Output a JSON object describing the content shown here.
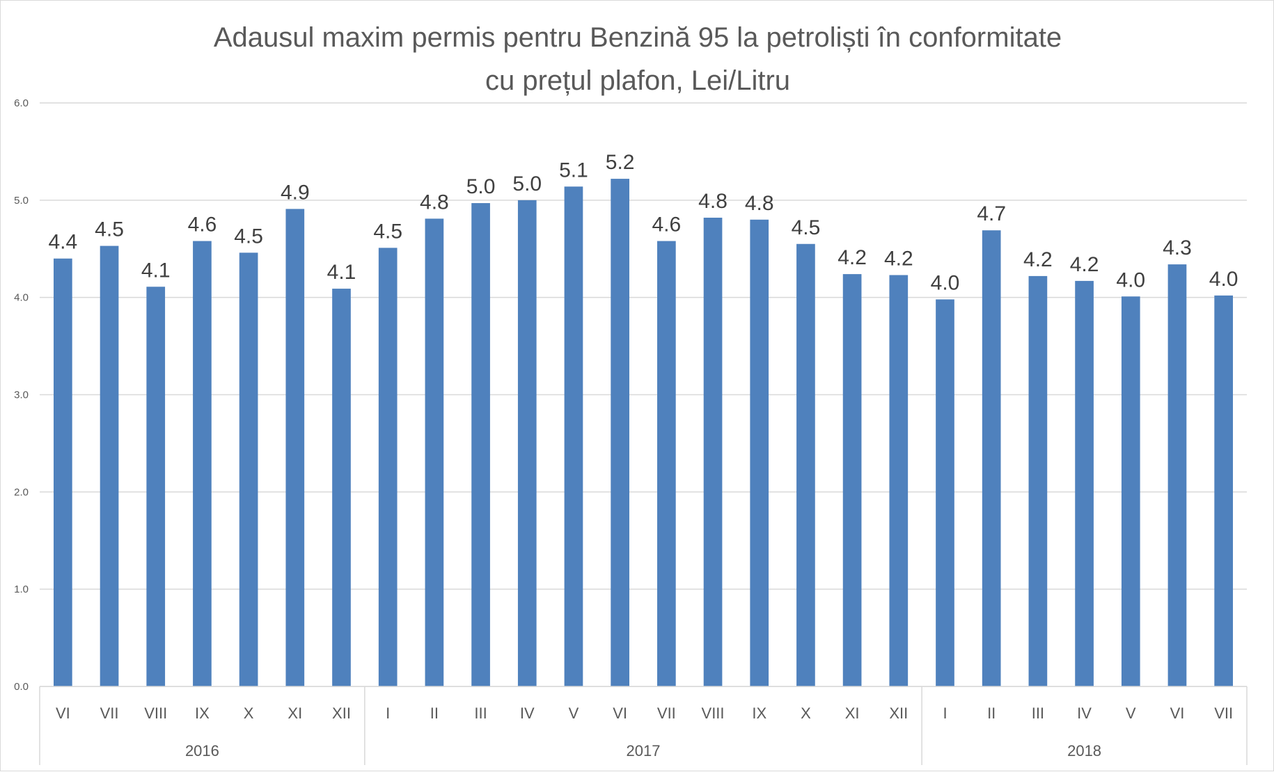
{
  "chart_data": {
    "type": "bar",
    "title": "Adausul maxim permis pentru Benzină 95 la petroliști în conformitate\ncu prețul plafon, Lei/Litru",
    "xlabel": "",
    "ylabel": "",
    "ylim": [
      0,
      6
    ],
    "yticks": [
      "0.0",
      "1.0",
      "2.0",
      "3.0",
      "4.0",
      "5.0",
      "6.0"
    ],
    "grid": true,
    "legend": "none",
    "bar_color": "#4f81bd",
    "groups": [
      {
        "label": "2016",
        "categories": [
          "VI",
          "VII",
          "VIII",
          "IX",
          "X",
          "XI",
          "XII"
        ],
        "values": [
          4.4,
          4.53,
          4.11,
          4.58,
          4.46,
          4.91,
          4.09
        ],
        "data_labels": [
          "4.4",
          "4.5",
          "4.1",
          "4.6",
          "4.5",
          "4.9",
          "4.1"
        ]
      },
      {
        "label": "2017",
        "categories": [
          "I",
          "II",
          "III",
          "IV",
          "V",
          "VI",
          "VII",
          "VIII",
          "IX",
          "X",
          "XI",
          "XII"
        ],
        "values": [
          4.51,
          4.81,
          4.97,
          5.0,
          5.14,
          5.22,
          4.58,
          4.82,
          4.8,
          4.55,
          4.24,
          4.23
        ],
        "data_labels": [
          "4.5",
          "4.8",
          "5.0",
          "5.0",
          "5.1",
          "5.2",
          "4.6",
          "4.8",
          "4.8",
          "4.5",
          "4.2",
          "4.2"
        ]
      },
      {
        "label": "2018",
        "categories": [
          "I",
          "II",
          "III",
          "IV",
          "V",
          "VI",
          "VII"
        ],
        "values": [
          3.98,
          4.69,
          4.22,
          4.17,
          4.01,
          4.34,
          4.02
        ],
        "data_labels": [
          "4.0",
          "4.7",
          "4.2",
          "4.2",
          "4.0",
          "4.3",
          "4.0"
        ]
      }
    ]
  }
}
